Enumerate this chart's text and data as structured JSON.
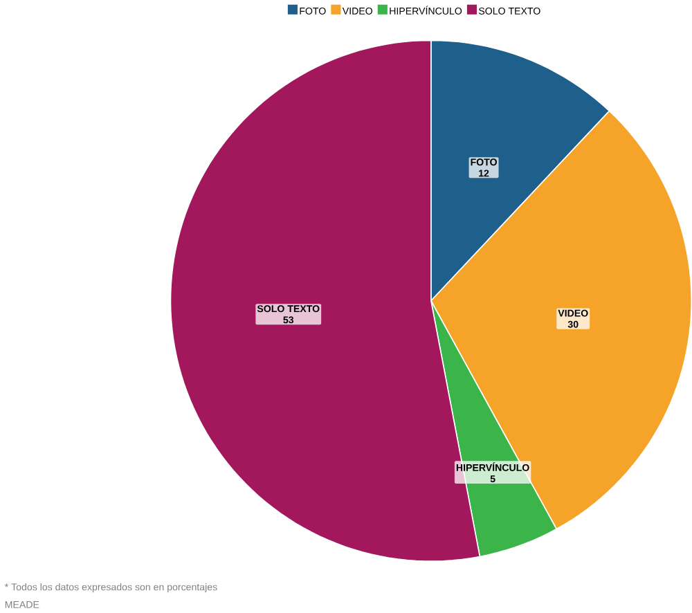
{
  "chart_data": {
    "type": "pie",
    "categories": [
      "FOTO",
      "VIDEO",
      "HIPERVÍNCULO",
      "SOLO TEXTO"
    ],
    "values": [
      12,
      30,
      5,
      53
    ],
    "colors": [
      "#1f5f8b",
      "#f5a329",
      "#3bb54a",
      "#a3185c"
    ],
    "legend": "top",
    "data_labels": true,
    "annotations": [
      "* Todos los datos expresados son en porcentajes",
      "MEADE"
    ]
  }
}
